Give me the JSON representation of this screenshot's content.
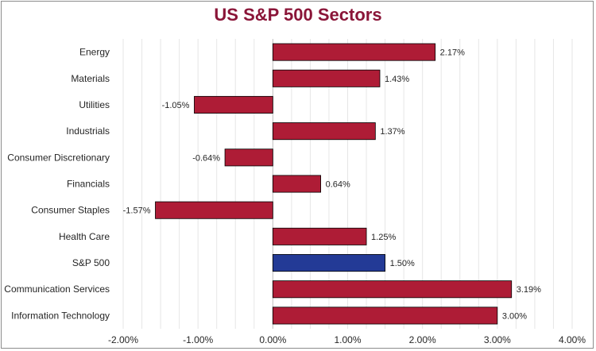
{
  "chart_data": {
    "type": "bar",
    "orientation": "horizontal",
    "title": "US S&P 500 Sectors",
    "xlabel": "",
    "ylabel": "",
    "categories": [
      "Energy",
      "Materials",
      "Utilities",
      "Industrials",
      "Consumer Discretionary",
      "Financials",
      "Consumer Staples",
      "Health Care",
      "S&P 500",
      "Communication Services",
      "Information Technology"
    ],
    "values": [
      2.17,
      1.43,
      -1.05,
      1.37,
      -0.64,
      0.64,
      -1.57,
      1.25,
      1.5,
      3.19,
      3.0
    ],
    "data_labels": [
      "2.17%",
      "1.43%",
      "-1.05%",
      "1.37%",
      "-0.64%",
      "0.64%",
      "-1.57%",
      "1.25%",
      "1.50%",
      "3.19%",
      "3.00%"
    ],
    "xlim": [
      -2.0,
      4.0
    ],
    "xticks": [
      -2.0,
      -1.0,
      0.0,
      1.0,
      2.0,
      3.0,
      4.0
    ],
    "xtick_labels": [
      "-2.00%",
      "-1.00%",
      "0.00%",
      "1.00%",
      "2.00%",
      "3.00%",
      "4.00%"
    ],
    "grid": "vertical",
    "legend": "none",
    "colors": {
      "bar": "#ae1c36",
      "highlight_bar": "#233a96",
      "highlight_category": "S&P 500",
      "title": "#8a1538",
      "gridline": "#e6e6e6"
    }
  }
}
